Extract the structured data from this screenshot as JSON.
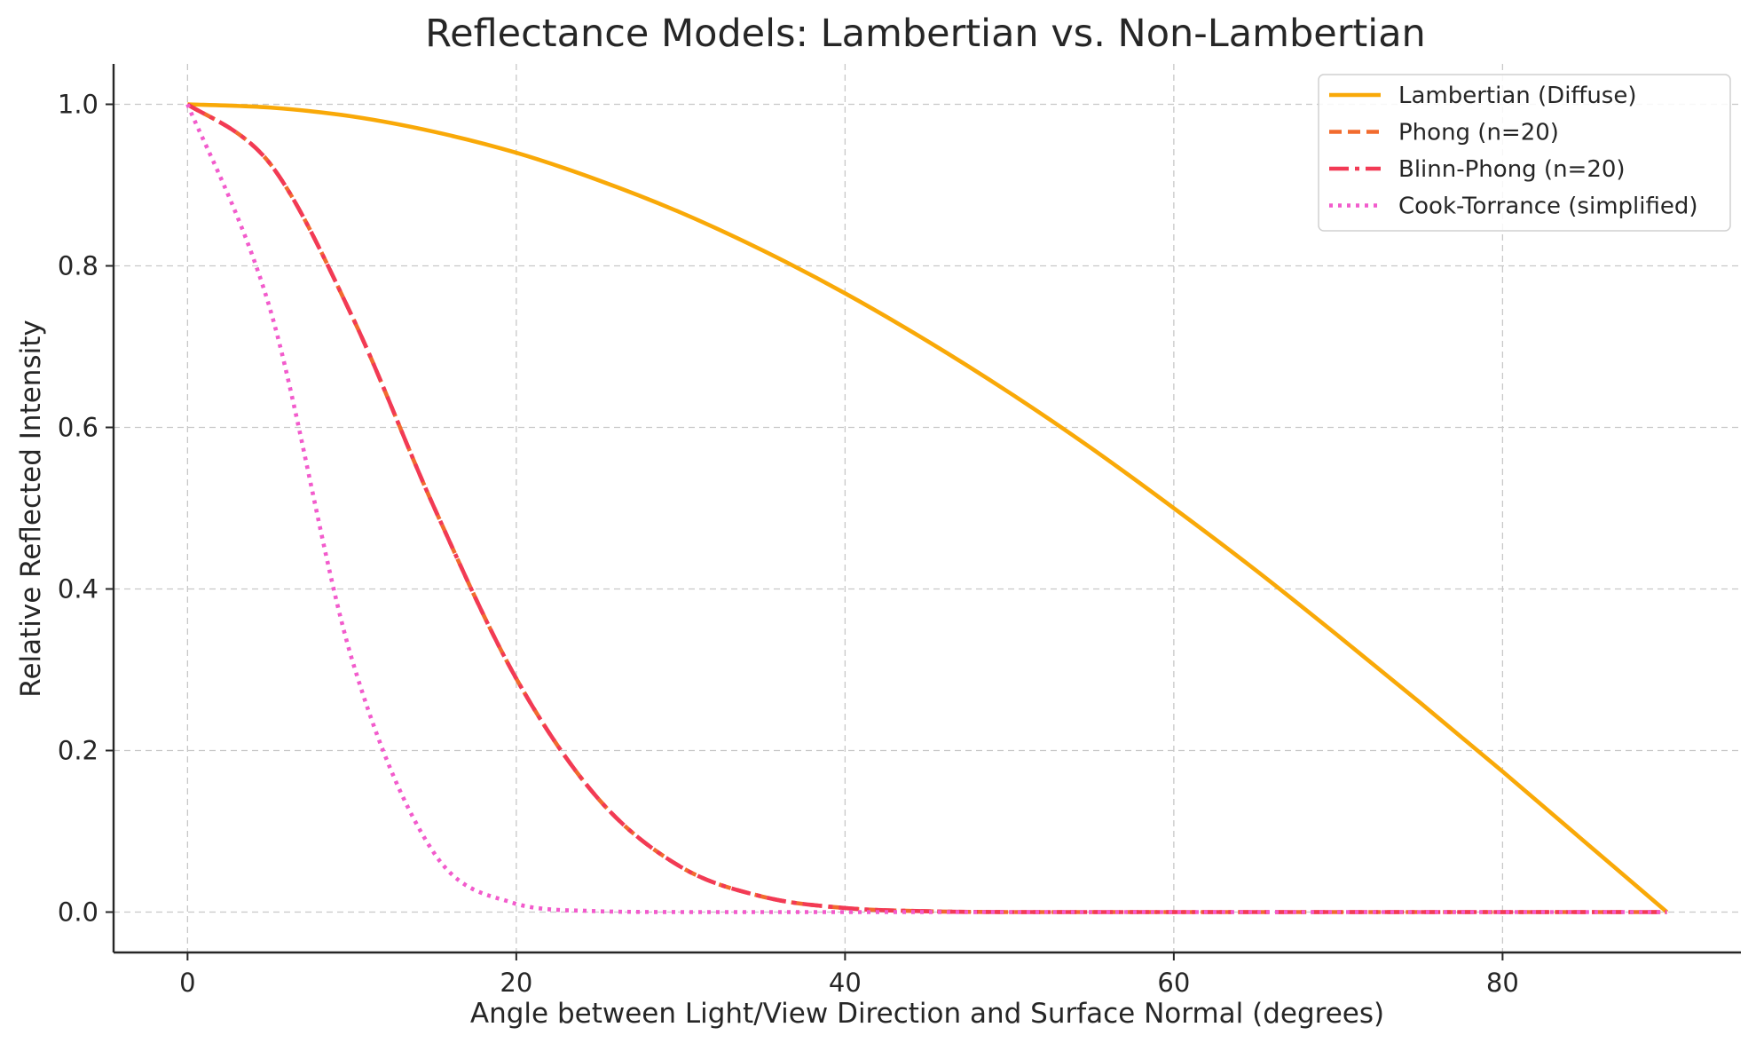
{
  "chart_data": {
    "type": "line",
    "title": "Reflectance Models: Lambertian vs. Non-Lambertian",
    "xlabel": "Angle between Light/View Direction and Surface Normal (degrees)",
    "ylabel": "Relative Reflected Intensity",
    "xlim": [
      -4.5,
      94.5
    ],
    "ylim": [
      -0.05,
      1.05
    ],
    "xticks": [
      0,
      20,
      40,
      60,
      80
    ],
    "yticks": [
      0.0,
      0.2,
      0.4,
      0.6,
      0.8,
      1.0
    ],
    "xtick_labels": [
      "0",
      "20",
      "40",
      "60",
      "80"
    ],
    "ytick_labels": [
      "0.0",
      "0.2",
      "0.4",
      "0.6",
      "0.8",
      "1.0"
    ],
    "grid": true,
    "legend_position": "upper right",
    "x": [
      0,
      5,
      10,
      15,
      20,
      25,
      30,
      35,
      40,
      45,
      50,
      55,
      60,
      65,
      70,
      75,
      80,
      85,
      90
    ],
    "series": [
      {
        "name": "Lambertian (Diffuse)",
        "color": "#f9a908",
        "style": "solid",
        "values": [
          1.0,
          0.996,
          0.985,
          0.966,
          0.94,
          0.906,
          0.866,
          0.819,
          0.766,
          0.707,
          0.643,
          0.574,
          0.5,
          0.423,
          0.342,
          0.259,
          0.174,
          0.087,
          0.0
        ]
      },
      {
        "name": "Phong (n=20)",
        "color": "#f26b2e",
        "style": "dashed",
        "values": [
          1.0,
          0.927,
          0.738,
          0.501,
          0.289,
          0.14,
          0.056,
          0.019,
          0.005,
          0.001,
          0.0,
          0.0,
          0.0,
          0.0,
          0.0,
          0.0,
          0.0,
          0.0,
          0.0
        ]
      },
      {
        "name": "Blinn-Phong (n=20)",
        "color": "#f23a55",
        "style": "dashdot",
        "values": [
          1.0,
          0.927,
          0.738,
          0.501,
          0.289,
          0.14,
          0.056,
          0.019,
          0.005,
          0.001,
          0.0,
          0.0,
          0.0,
          0.0,
          0.0,
          0.0,
          0.0,
          0.0,
          0.0
        ]
      },
      {
        "name": "Cook-Torrance (simplified)",
        "color": "#f25bcc",
        "style": "dotted",
        "values": [
          1.0,
          0.748,
          0.313,
          0.073,
          0.01,
          0.001,
          0.0,
          0.0,
          0.0,
          0.0,
          0.0,
          0.0,
          0.0,
          0.0,
          0.0,
          0.0,
          0.0,
          0.0,
          0.0
        ]
      }
    ]
  }
}
